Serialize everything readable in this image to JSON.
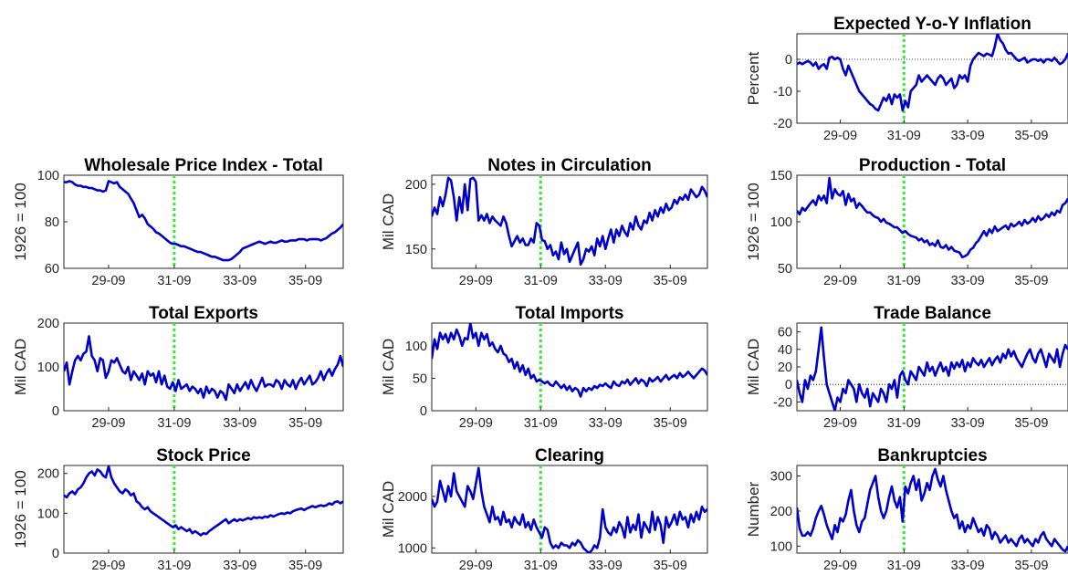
{
  "colors": {
    "series": "#0000cc",
    "event_line": "#33ee33",
    "zero_line": "#000000",
    "axes": "#262626"
  },
  "chart_data": [
    {
      "id": "inflation",
      "type": "line",
      "title": "Expected Y-o-Y Inflation",
      "xlabel": "",
      "ylabel": "Percent",
      "xlim": [
        0,
        100
      ],
      "ylim": [
        -20,
        8
      ],
      "yticks": [
        -20,
        -10,
        0
      ],
      "ytick_labels": [
        "-20",
        "-10",
        "0"
      ],
      "xticks": [
        16,
        39.5,
        63,
        86.5
      ],
      "xtick_labels": [
        "29-09",
        "31-09",
        "33-09",
        "35-09"
      ],
      "event_x": 39.5,
      "zero_line": true,
      "values": [
        -1.5,
        -1,
        -1.5,
        -1,
        -0.5,
        -1,
        -2,
        -1,
        -3,
        -2,
        -1.5,
        -3,
        0.5,
        0.8,
        0,
        0.5,
        0,
        -3,
        -5,
        -2,
        -4,
        -6,
        -8,
        -10,
        -11,
        -12,
        -13,
        -14,
        -14.5,
        -15.5,
        -16,
        -14,
        -12,
        -13,
        -11,
        -14,
        -11,
        -12,
        -11,
        -16,
        -13,
        -15,
        -10,
        -9,
        -8,
        -5,
        -7,
        -6,
        -5,
        -6,
        -7,
        -8,
        -6,
        -5,
        -6,
        -8,
        -7,
        -6,
        -9,
        -8,
        -5,
        -6,
        -5,
        -7,
        -2,
        0,
        1,
        2,
        1.5,
        1,
        1.8,
        1.5,
        1,
        4,
        8,
        6,
        5,
        3,
        1.8,
        2,
        1,
        0,
        -0.5,
        0,
        0.5,
        -1,
        -0.5,
        0,
        0,
        -0.5,
        0,
        -1,
        0,
        0,
        -0.5,
        0.5,
        -0.5,
        -1.5,
        -1,
        0,
        2
      ]
    },
    {
      "id": "wpi",
      "type": "line",
      "title": "Wholesale Price Index - Total",
      "xlabel": "",
      "ylabel": "1926 = 100",
      "xlim": [
        0,
        100
      ],
      "ylim": [
        60,
        100
      ],
      "yticks": [
        60,
        80,
        100
      ],
      "ytick_labels": [
        "60",
        "80",
        "100"
      ],
      "xticks": [
        16,
        39.5,
        63,
        86.5
      ],
      "xtick_labels": [
        "29-09",
        "31-09",
        "33-09",
        "35-09"
      ],
      "event_x": 39.5,
      "values": [
        97,
        97,
        97.5,
        97,
        96,
        95.5,
        95.5,
        95,
        95,
        94.5,
        94.5,
        94,
        93.5,
        93.5,
        93,
        93.5,
        97.5,
        97,
        96.5,
        97,
        95,
        94,
        93,
        92,
        90,
        88,
        85,
        82,
        83,
        81.5,
        79,
        78,
        77,
        75.5,
        75,
        74,
        73,
        72,
        71,
        70.5,
        70.5,
        70,
        69.5,
        69.5,
        69,
        68.5,
        68,
        67.5,
        67,
        67,
        66.5,
        66,
        65.5,
        65,
        65,
        64.5,
        64,
        63.5,
        63.5,
        63.5,
        64,
        65,
        66,
        67,
        68.5,
        69,
        69.5,
        70,
        70.5,
        71,
        71.5,
        71,
        70.5,
        71,
        71.5,
        71,
        71,
        71.5,
        72,
        71.5,
        71.5,
        72,
        72,
        72,
        72.5,
        72.5,
        72.5,
        72,
        72.5,
        72.5,
        72.5,
        72.5,
        72,
        72.5,
        73,
        74,
        75,
        75.5,
        76.5,
        77.5,
        79
      ]
    },
    {
      "id": "notes",
      "type": "line",
      "title": "Notes in Circulation",
      "xlabel": "",
      "ylabel": "Mil CAD",
      "xlim": [
        0,
        100
      ],
      "ylim": [
        135,
        207
      ],
      "yticks": [
        150,
        200
      ],
      "ytick_labels": [
        "150",
        "200"
      ],
      "xticks": [
        16,
        39.5,
        63,
        86.5
      ],
      "xtick_labels": [
        "29-09",
        "31-09",
        "33-09",
        "35-09"
      ],
      "event_x": 39.5,
      "values": [
        175,
        182,
        177,
        190,
        183,
        192,
        205,
        203,
        190,
        172,
        190,
        178,
        200,
        180,
        204,
        205,
        202,
        172,
        176,
        172,
        177,
        170,
        175,
        172,
        170,
        168,
        175,
        170,
        160,
        152,
        156,
        160,
        155,
        158,
        153,
        153,
        158,
        155,
        170,
        168,
        157,
        156,
        150,
        153,
        145,
        148,
        142,
        155,
        146,
        150,
        140,
        145,
        150,
        155,
        138,
        142,
        150,
        148,
        152,
        145,
        158,
        152,
        160,
        150,
        158,
        165,
        155,
        165,
        160,
        168,
        163,
        160,
        170,
        165,
        175,
        168,
        165,
        172,
        170,
        178,
        172,
        180,
        175,
        182,
        178,
        185,
        180,
        182,
        188,
        185,
        190,
        188,
        192,
        188,
        196,
        193,
        190,
        192,
        198,
        195,
        190
      ]
    },
    {
      "id": "production",
      "type": "line",
      "title": "Production - Total",
      "xlabel": "",
      "ylabel": "1926 = 100",
      "xlim": [
        0,
        100
      ],
      "ylim": [
        50,
        150
      ],
      "yticks": [
        50,
        100,
        150
      ],
      "ytick_labels": [
        "50",
        "100",
        "150"
      ],
      "xticks": [
        16,
        39.5,
        63,
        86.5
      ],
      "xtick_labels": [
        "29-09",
        "31-09",
        "33-09",
        "35-09"
      ],
      "event_x": 39.5,
      "values": [
        112,
        108,
        115,
        112,
        116,
        120,
        123,
        118,
        128,
        123,
        128,
        120,
        147,
        125,
        135,
        130,
        128,
        133,
        118,
        130,
        122,
        125,
        115,
        120,
        117,
        113,
        110,
        110,
        107,
        105,
        104,
        100,
        103,
        99,
        98,
        96,
        94,
        94,
        91,
        88,
        90,
        87,
        85,
        84,
        83,
        80,
        82,
        78,
        80,
        75,
        77,
        74,
        80,
        73,
        72,
        75,
        70,
        73,
        69,
        68,
        67,
        62,
        63,
        65,
        70,
        72,
        77,
        80,
        85,
        90,
        85,
        92,
        88,
        95,
        90,
        92,
        94,
        96,
        92,
        98,
        95,
        97,
        100,
        96,
        102,
        98,
        100,
        104,
        100,
        106,
        102,
        104,
        108,
        105,
        110,
        107,
        112,
        110,
        118,
        120,
        125
      ]
    },
    {
      "id": "exports",
      "type": "line",
      "title": "Total Exports",
      "xlabel": "",
      "ylabel": "Mil CAD",
      "xlim": [
        0,
        100
      ],
      "ylim": [
        0,
        200
      ],
      "yticks": [
        0,
        100,
        200
      ],
      "ytick_labels": [
        "0",
        "100",
        "200"
      ],
      "xticks": [
        16,
        39.5,
        63,
        86.5
      ],
      "xtick_labels": [
        "29-09",
        "31-09",
        "33-09",
        "35-09"
      ],
      "event_x": 39.5,
      "values": [
        90,
        110,
        60,
        90,
        115,
        125,
        115,
        130,
        135,
        170,
        125,
        115,
        90,
        120,
        115,
        75,
        90,
        115,
        110,
        120,
        105,
        90,
        85,
        100,
        70,
        90,
        80,
        70,
        85,
        60,
        90,
        80,
        85,
        65,
        90,
        60,
        80,
        55,
        50,
        65,
        45,
        70,
        50,
        55,
        60,
        45,
        55,
        50,
        40,
        50,
        30,
        55,
        40,
        50,
        45,
        30,
        45,
        40,
        25,
        60,
        50,
        40,
        60,
        45,
        55,
        65,
        50,
        70,
        55,
        45,
        60,
        75,
        55,
        60,
        60,
        55,
        70,
        65,
        50,
        70,
        60,
        55,
        70,
        50,
        65,
        75,
        60,
        70,
        80,
        60,
        65,
        75,
        90,
        70,
        85,
        95,
        80,
        95,
        105,
        125,
        100
      ]
    },
    {
      "id": "imports",
      "type": "line",
      "title": "Total Imports",
      "xlabel": "",
      "ylabel": "Mil CAD",
      "xlim": [
        0,
        100
      ],
      "ylim": [
        0,
        135
      ],
      "yticks": [
        0,
        50,
        100
      ],
      "ytick_labels": [
        "0",
        "50",
        "100"
      ],
      "xticks": [
        16,
        39.5,
        63,
        86.5
      ],
      "xtick_labels": [
        "29-09",
        "31-09",
        "33-09",
        "35-09"
      ],
      "event_x": 39.5,
      "values": [
        80,
        110,
        95,
        120,
        110,
        118,
        105,
        120,
        110,
        125,
        115,
        100,
        112,
        110,
        135,
        112,
        120,
        100,
        120,
        110,
        118,
        100,
        105,
        95,
        90,
        100,
        88,
        85,
        75,
        80,
        65,
        75,
        60,
        70,
        55,
        65,
        50,
        55,
        45,
        48,
        45,
        42,
        45,
        40,
        38,
        45,
        40,
        35,
        40,
        32,
        38,
        30,
        35,
        32,
        22,
        35,
        30,
        35,
        32,
        38,
        35,
        40,
        38,
        42,
        38,
        35,
        45,
        40,
        38,
        45,
        42,
        48,
        40,
        45,
        50,
        42,
        48,
        45,
        38,
        50,
        45,
        48,
        52,
        45,
        50,
        55,
        48,
        52,
        55,
        50,
        58,
        52,
        55,
        60,
        55,
        50,
        55,
        60,
        65,
        62,
        55
      ]
    },
    {
      "id": "trade",
      "type": "line",
      "title": "Trade Balance",
      "xlabel": "",
      "ylabel": "Mil CAD",
      "xlim": [
        0,
        100
      ],
      "ylim": [
        -30,
        70
      ],
      "yticks": [
        -20,
        0,
        20,
        40,
        60
      ],
      "ytick_labels": [
        "-20",
        "0",
        "20",
        "40",
        "60"
      ],
      "xticks": [
        16,
        39.5,
        63,
        86.5
      ],
      "xtick_labels": [
        "29-09",
        "31-09",
        "33-09",
        "35-09"
      ],
      "event_x": 39.5,
      "zero_line": true,
      "values": [
        5,
        -10,
        -20,
        5,
        -5,
        10,
        5,
        15,
        40,
        65,
        30,
        0,
        -10,
        -20,
        -30,
        -15,
        -20,
        -5,
        -10,
        5,
        0,
        -5,
        -20,
        0,
        -10,
        -15,
        -5,
        -25,
        -10,
        -15,
        -20,
        -5,
        -10,
        -20,
        0,
        -5,
        5,
        -15,
        10,
        15,
        5,
        0,
        15,
        10,
        5,
        20,
        15,
        10,
        25,
        15,
        20,
        10,
        18,
        25,
        15,
        20,
        10,
        25,
        18,
        25,
        20,
        28,
        15,
        25,
        20,
        30,
        25,
        22,
        28,
        20,
        25,
        30,
        22,
        28,
        32,
        25,
        35,
        30,
        40,
        32,
        38,
        30,
        25,
        20,
        28,
        35,
        40,
        30,
        25,
        35,
        40,
        30,
        20,
        35,
        30,
        25,
        40,
        20,
        35,
        45,
        40
      ]
    },
    {
      "id": "stock",
      "type": "line",
      "title": "Stock Price",
      "xlabel": "",
      "ylabel": "1926 = 100",
      "xlim": [
        0,
        100
      ],
      "ylim": [
        0,
        220
      ],
      "yticks": [
        0,
        100,
        200
      ],
      "ytick_labels": [
        "0",
        "100",
        "200"
      ],
      "xticks": [
        16,
        39.5,
        63,
        86.5
      ],
      "xtick_labels": [
        "29-09",
        "31-09",
        "33-09",
        "35-09"
      ],
      "event_x": 39.5,
      "values": [
        145,
        140,
        150,
        155,
        148,
        160,
        165,
        175,
        190,
        200,
        205,
        195,
        210,
        205,
        195,
        190,
        218,
        190,
        175,
        165,
        155,
        150,
        160,
        155,
        145,
        150,
        130,
        125,
        115,
        110,
        115,
        105,
        100,
        95,
        90,
        85,
        80,
        75,
        70,
        65,
        70,
        60,
        65,
        60,
        55,
        60,
        50,
        55,
        50,
        45,
        50,
        48,
        55,
        60,
        65,
        70,
        75,
        80,
        85,
        75,
        80,
        85,
        80,
        85,
        82,
        85,
        88,
        85,
        90,
        88,
        90,
        88,
        92,
        90,
        95,
        92,
        95,
        98,
        100,
        98,
        102,
        100,
        105,
        108,
        110,
        112,
        108,
        112,
        115,
        118,
        115,
        118,
        120,
        118,
        120,
        125,
        122,
        128,
        130,
        125,
        130
      ]
    },
    {
      "id": "clearing",
      "type": "line",
      "title": "Clearing",
      "xlabel": "",
      "ylabel": "Mil CAD",
      "xlim": [
        0,
        100
      ],
      "ylim": [
        900,
        2600
      ],
      "yticks": [
        1000,
        2000
      ],
      "ytick_labels": [
        "1000",
        "2000"
      ],
      "xticks": [
        16,
        39.5,
        63,
        86.5
      ],
      "xtick_labels": [
        "29-09",
        "31-09",
        "33-09",
        "35-09"
      ],
      "event_x": 39.5,
      "values": [
        1950,
        1800,
        1900,
        2300,
        2100,
        1900,
        2200,
        2000,
        2450,
        2100,
        2000,
        1900,
        1800,
        2200,
        2100,
        1950,
        2250,
        2550,
        2100,
        1800,
        1650,
        1500,
        1800,
        1550,
        1600,
        1450,
        1700,
        1500,
        1550,
        1400,
        1600,
        1500,
        1450,
        1650,
        1400,
        1500,
        1350,
        1550,
        1400,
        1300,
        1200,
        1400,
        1350,
        1100,
        1000,
        1050,
        1000,
        1100,
        1050,
        1050,
        1000,
        1100,
        1050,
        1150,
        1100,
        1000,
        950,
        900,
        950,
        1050,
        1000,
        1200,
        1750,
        1400,
        1300,
        1250,
        1400,
        1300,
        1500,
        1400,
        1200,
        1600,
        1300,
        1450,
        1350,
        1650,
        1200,
        1500,
        1400,
        1300,
        1700,
        1350,
        1600,
        1450,
        1100,
        1600,
        1400,
        1500,
        1650,
        1450,
        1700,
        1550,
        1600,
        1400,
        1650,
        1500,
        1700,
        1550,
        1800,
        1700,
        1750
      ]
    },
    {
      "id": "bankruptcies",
      "type": "line",
      "title": "Bankruptcies",
      "xlabel": "",
      "ylabel": "Number",
      "xlim": [
        0,
        100
      ],
      "ylim": [
        80,
        330
      ],
      "yticks": [
        100,
        200,
        300
      ],
      "ytick_labels": [
        "100",
        "200",
        "300"
      ],
      "xticks": [
        16,
        39.5,
        63,
        86.5
      ],
      "xtick_labels": [
        "29-09",
        "31-09",
        "33-09",
        "35-09"
      ],
      "event_x": 39.5,
      "values": [
        210,
        150,
        130,
        130,
        140,
        130,
        150,
        180,
        200,
        215,
        190,
        160,
        140,
        120,
        160,
        140,
        180,
        170,
        190,
        230,
        260,
        200,
        160,
        140,
        170,
        180,
        220,
        260,
        280,
        300,
        240,
        200,
        180,
        200,
        240,
        270,
        230,
        210,
        240,
        170,
        270,
        250,
        280,
        300,
        260,
        290,
        230,
        250,
        280,
        260,
        300,
        320,
        290,
        270,
        300,
        260,
        230,
        200,
        180,
        190,
        150,
        170,
        140,
        160,
        150,
        180,
        160,
        140,
        150,
        130,
        160,
        150,
        120,
        140,
        130,
        110,
        120,
        130,
        110,
        120,
        110,
        100,
        120,
        130,
        110,
        120,
        110,
        100,
        120,
        110,
        130,
        140,
        120,
        110,
        100,
        120,
        110,
        100,
        90,
        85,
        100
      ]
    }
  ]
}
